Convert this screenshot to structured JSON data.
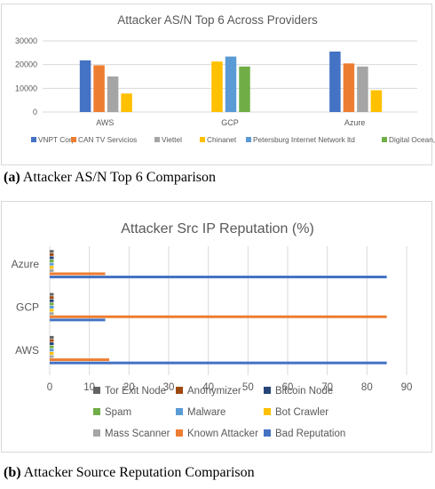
{
  "colors": {
    "axis_text": "#595959",
    "grid": "#d9d9d9"
  },
  "chart_data": [
    {
      "type": "bar",
      "title": "Attacker AS/N Top 6 Across Providers",
      "categories": [
        "AWS",
        "GCP",
        "Azure"
      ],
      "ylim": [
        0,
        30000
      ],
      "yticks": [
        0,
        10000,
        20000,
        30000
      ],
      "grid": true,
      "legend_position": "bottom",
      "series": [
        {
          "name": "VNPT Corp",
          "color": "#4472c4",
          "values": [
            21800,
            null,
            25500
          ]
        },
        {
          "name": "CAN TV Servicios",
          "color": "#ed7d31",
          "values": [
            19700,
            null,
            20500
          ]
        },
        {
          "name": "Viettel",
          "color": "#a5a5a5",
          "values": [
            15000,
            null,
            19200
          ]
        },
        {
          "name": "Chinanet",
          "color": "#ffc000",
          "values": [
            7800,
            21300,
            9200
          ]
        },
        {
          "name": "Petersburg Internet Network ltd",
          "color": "#5b9bd5",
          "values": [
            null,
            23400,
            null
          ]
        },
        {
          "name": "Digital Ocean, Inc",
          "color": "#70ad47",
          "values": [
            null,
            19200,
            null
          ]
        }
      ]
    },
    {
      "type": "bar",
      "orientation": "horizontal",
      "title": "Attacker Src IP Reputation (%)",
      "categories": [
        "AWS",
        "GCP",
        "Azure"
      ],
      "xlim": [
        0,
        90
      ],
      "xticks": [
        0,
        10,
        20,
        30,
        40,
        50,
        60,
        70,
        80,
        90
      ],
      "grid": true,
      "legend_position": "bottom",
      "series": [
        {
          "name": "Bad Reputation",
          "color": "#4472c4",
          "values": [
            85,
            14,
            85
          ]
        },
        {
          "name": "Known Attacker",
          "color": "#ed7d31",
          "values": [
            15,
            85,
            14
          ]
        },
        {
          "name": "Mass Scanner",
          "color": "#a5a5a5",
          "values": [
            1,
            1,
            1
          ]
        },
        {
          "name": "Bot Crawler",
          "color": "#ffc000",
          "values": [
            1,
            1,
            1
          ]
        },
        {
          "name": "Malware",
          "color": "#5b9bd5",
          "values": [
            1,
            1,
            1
          ]
        },
        {
          "name": "Spam",
          "color": "#70ad47",
          "values": [
            1,
            1,
            1
          ]
        },
        {
          "name": "Bitcoin Node",
          "color": "#264478",
          "values": [
            1,
            1,
            1
          ]
        },
        {
          "name": "Anonymizer",
          "color": "#9e480e",
          "values": [
            1,
            1,
            1
          ]
        },
        {
          "name": "Tor Exit Node",
          "color": "#636363",
          "values": [
            1,
            1,
            1
          ]
        }
      ],
      "legend_order": [
        "Tor Exit Node",
        "Anonymizer",
        "Bitcoin Node",
        "Spam",
        "Malware",
        "Bot Crawler",
        "Mass Scanner",
        "Known Attacker",
        "Bad Reputation"
      ]
    }
  ],
  "captions": [
    {
      "label": "(a)",
      "text": " Attacker AS/N Top 6 Comparison"
    },
    {
      "label": "(b)",
      "text": " Attacker Source Reputation Comparison"
    }
  ]
}
